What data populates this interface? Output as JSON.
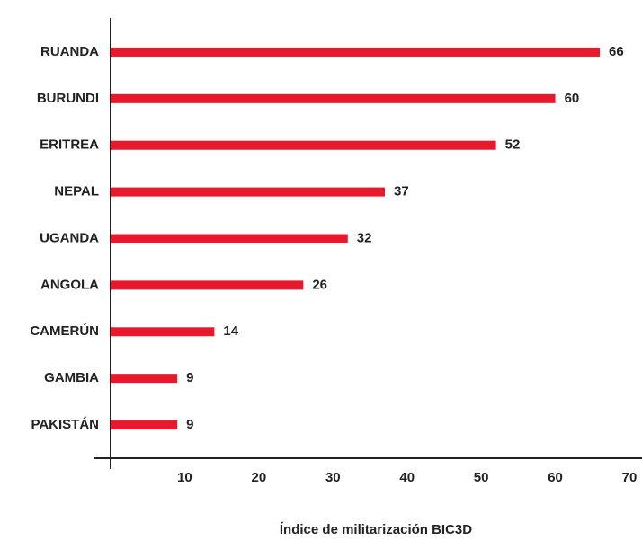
{
  "chart_data": {
    "type": "bar",
    "orientation": "horizontal",
    "x_label": "Índice de militarización BIC3D",
    "categories": [
      "RUANDA",
      "BURUNDI",
      "ERITREA",
      "NEPAL",
      "UGANDA",
      "ANGOLA",
      "CAMERÚN",
      "GAMBIA",
      "PAKISTÁN"
    ],
    "values": [
      66,
      60,
      52,
      37,
      32,
      26,
      14,
      9,
      9
    ],
    "color": "#e8192c",
    "xlim": [
      0,
      70
    ],
    "xticks": [
      10,
      20,
      30,
      40,
      50,
      60,
      70
    ],
    "grid": false
  }
}
